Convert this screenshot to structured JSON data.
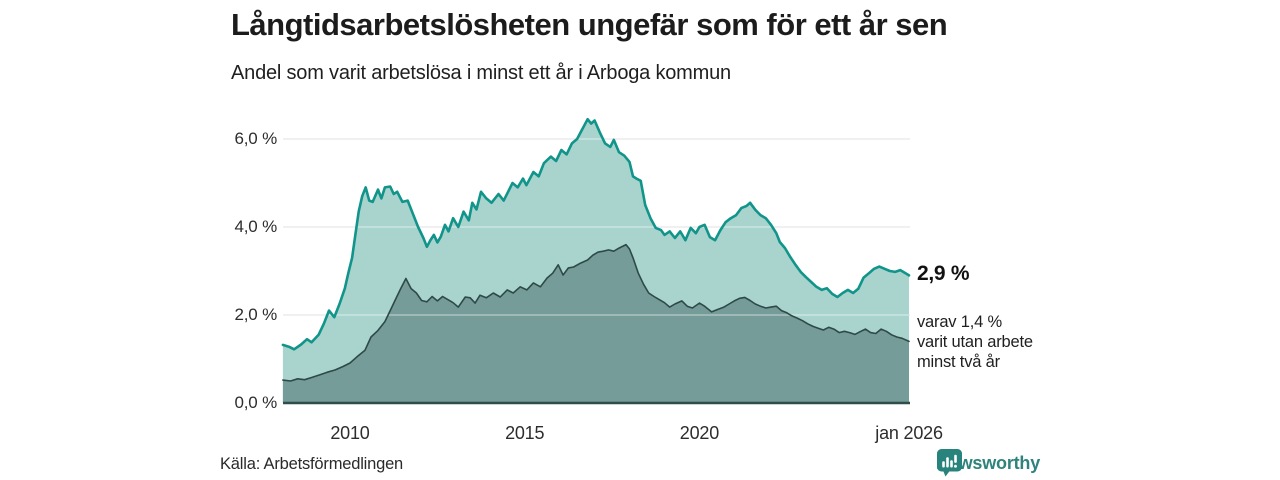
{
  "header": {
    "title": "Långtidsarbetslösheten ungefär som för ett år sen",
    "subtitle": "Andel som varit arbetslösa i minst ett år i Arboga kommun"
  },
  "annotations": {
    "total_label": "2,9 %",
    "subset_label": "varav 1,4 %\nvarit utan arbete\nminst två år"
  },
  "footer": {
    "source": "Källa: Arbetsförmedlingen",
    "brand": "Newsworthy"
  },
  "chart_data": {
    "type": "area",
    "title": "Långtidsarbetslösheten ungefär som för ett år sen",
    "subtitle": "Andel som varit arbetslösa i minst ett år i Arboga kommun",
    "unit": "%",
    "x_range": [
      2008.08,
      2026.0
    ],
    "ylim": [
      0,
      6.6
    ],
    "grid": "horizontal",
    "legend": "none",
    "y_ticks": [
      {
        "label": "6,0 %",
        "value": 6
      },
      {
        "label": "4,0 %",
        "value": 4
      },
      {
        "label": "2,0 %",
        "value": 2
      },
      {
        "label": "0,0 %",
        "value": 0
      }
    ],
    "x_ticks": [
      {
        "label": "2010",
        "year": 2010
      },
      {
        "label": "2015",
        "year": 2015
      },
      {
        "label": "2020",
        "year": 2020
      },
      {
        "label": "jan 2026",
        "year": 2026
      }
    ],
    "colors": {
      "grid": "#e2e2e6",
      "grid_over_area": "rgba(255,255,255,0.4)",
      "baseline": "#2f4d49"
    },
    "series": [
      {
        "name": "Arbetslösa minst ett år",
        "last_value": 2.9,
        "last_value_label": "2,9 %",
        "fill": "#a9d4ce",
        "stroke": "#11948a",
        "stroke_width": 2.6,
        "points": [
          [
            2008.08,
            1.32
          ],
          [
            2008.25,
            1.28
          ],
          [
            2008.4,
            1.22
          ],
          [
            2008.6,
            1.33
          ],
          [
            2008.77,
            1.45
          ],
          [
            2008.9,
            1.38
          ],
          [
            2009.1,
            1.55
          ],
          [
            2009.25,
            1.8
          ],
          [
            2009.4,
            2.1
          ],
          [
            2009.55,
            1.95
          ],
          [
            2009.7,
            2.25
          ],
          [
            2009.85,
            2.6
          ],
          [
            2009.95,
            2.95
          ],
          [
            2010.06,
            3.3
          ],
          [
            2010.15,
            3.8
          ],
          [
            2010.25,
            4.35
          ],
          [
            2010.35,
            4.7
          ],
          [
            2010.45,
            4.9
          ],
          [
            2010.55,
            4.6
          ],
          [
            2010.65,
            4.57
          ],
          [
            2010.8,
            4.85
          ],
          [
            2010.9,
            4.65
          ],
          [
            2011.0,
            4.9
          ],
          [
            2011.15,
            4.92
          ],
          [
            2011.25,
            4.75
          ],
          [
            2011.35,
            4.8
          ],
          [
            2011.5,
            4.57
          ],
          [
            2011.65,
            4.6
          ],
          [
            2011.8,
            4.3
          ],
          [
            2011.95,
            4.0
          ],
          [
            2012.1,
            3.75
          ],
          [
            2012.2,
            3.55
          ],
          [
            2012.3,
            3.7
          ],
          [
            2012.4,
            3.82
          ],
          [
            2012.5,
            3.65
          ],
          [
            2012.6,
            3.78
          ],
          [
            2012.72,
            4.05
          ],
          [
            2012.82,
            3.9
          ],
          [
            2012.95,
            4.2
          ],
          [
            2013.1,
            4.0
          ],
          [
            2013.25,
            4.35
          ],
          [
            2013.4,
            4.15
          ],
          [
            2013.5,
            4.55
          ],
          [
            2013.62,
            4.4
          ],
          [
            2013.75,
            4.8
          ],
          [
            2013.9,
            4.65
          ],
          [
            2014.05,
            4.55
          ],
          [
            2014.25,
            4.75
          ],
          [
            2014.4,
            4.6
          ],
          [
            2014.65,
            5.0
          ],
          [
            2014.8,
            4.9
          ],
          [
            2014.95,
            5.1
          ],
          [
            2015.05,
            4.95
          ],
          [
            2015.25,
            5.25
          ],
          [
            2015.4,
            5.15
          ],
          [
            2015.55,
            5.45
          ],
          [
            2015.75,
            5.6
          ],
          [
            2015.9,
            5.5
          ],
          [
            2016.05,
            5.75
          ],
          [
            2016.2,
            5.65
          ],
          [
            2016.35,
            5.9
          ],
          [
            2016.5,
            6.0
          ],
          [
            2016.6,
            6.15
          ],
          [
            2016.7,
            6.3
          ],
          [
            2016.8,
            6.45
          ],
          [
            2016.9,
            6.35
          ],
          [
            2017.0,
            6.42
          ],
          [
            2017.15,
            6.15
          ],
          [
            2017.3,
            5.9
          ],
          [
            2017.45,
            5.82
          ],
          [
            2017.55,
            5.98
          ],
          [
            2017.7,
            5.7
          ],
          [
            2017.85,
            5.62
          ],
          [
            2018.0,
            5.48
          ],
          [
            2018.1,
            5.15
          ],
          [
            2018.2,
            5.1
          ],
          [
            2018.32,
            5.05
          ],
          [
            2018.45,
            4.5
          ],
          [
            2018.6,
            4.2
          ],
          [
            2018.75,
            3.98
          ],
          [
            2018.9,
            3.93
          ],
          [
            2019.0,
            3.82
          ],
          [
            2019.15,
            3.9
          ],
          [
            2019.3,
            3.75
          ],
          [
            2019.45,
            3.9
          ],
          [
            2019.6,
            3.7
          ],
          [
            2019.75,
            3.98
          ],
          [
            2019.9,
            3.86
          ],
          [
            2020.0,
            4.0
          ],
          [
            2020.15,
            4.05
          ],
          [
            2020.3,
            3.77
          ],
          [
            2020.45,
            3.7
          ],
          [
            2020.6,
            3.93
          ],
          [
            2020.75,
            4.11
          ],
          [
            2020.9,
            4.2
          ],
          [
            2021.05,
            4.27
          ],
          [
            2021.2,
            4.43
          ],
          [
            2021.35,
            4.48
          ],
          [
            2021.45,
            4.55
          ],
          [
            2021.6,
            4.39
          ],
          [
            2021.75,
            4.27
          ],
          [
            2021.9,
            4.2
          ],
          [
            2022.05,
            4.05
          ],
          [
            2022.2,
            3.86
          ],
          [
            2022.3,
            3.66
          ],
          [
            2022.45,
            3.52
          ],
          [
            2022.6,
            3.32
          ],
          [
            2022.75,
            3.14
          ],
          [
            2022.9,
            2.98
          ],
          [
            2023.05,
            2.86
          ],
          [
            2023.2,
            2.75
          ],
          [
            2023.35,
            2.64
          ],
          [
            2023.5,
            2.57
          ],
          [
            2023.65,
            2.61
          ],
          [
            2023.8,
            2.48
          ],
          [
            2023.95,
            2.41
          ],
          [
            2024.1,
            2.5
          ],
          [
            2024.25,
            2.57
          ],
          [
            2024.4,
            2.5
          ],
          [
            2024.55,
            2.6
          ],
          [
            2024.7,
            2.85
          ],
          [
            2024.85,
            2.95
          ],
          [
            2025.0,
            3.05
          ],
          [
            2025.15,
            3.1
          ],
          [
            2025.3,
            3.05
          ],
          [
            2025.45,
            3.0
          ],
          [
            2025.6,
            2.98
          ],
          [
            2025.75,
            3.02
          ],
          [
            2025.9,
            2.95
          ],
          [
            2026.0,
            2.9
          ]
        ]
      },
      {
        "name": "varav utan arbete minst två år",
        "last_value": 1.4,
        "last_value_label": "1,4 %",
        "fill": "#759c98",
        "stroke": "#2e4a48",
        "stroke_width": 1.6,
        "points": [
          [
            2008.08,
            0.52
          ],
          [
            2008.3,
            0.5
          ],
          [
            2008.5,
            0.55
          ],
          [
            2008.7,
            0.53
          ],
          [
            2008.9,
            0.58
          ],
          [
            2009.14,
            0.64
          ],
          [
            2009.35,
            0.7
          ],
          [
            2009.57,
            0.75
          ],
          [
            2009.8,
            0.83
          ],
          [
            2010.0,
            0.91
          ],
          [
            2010.2,
            1.05
          ],
          [
            2010.43,
            1.2
          ],
          [
            2010.6,
            1.5
          ],
          [
            2010.8,
            1.65
          ],
          [
            2011.0,
            1.85
          ],
          [
            2011.15,
            2.1
          ],
          [
            2011.3,
            2.35
          ],
          [
            2011.45,
            2.6
          ],
          [
            2011.6,
            2.83
          ],
          [
            2011.75,
            2.6
          ],
          [
            2011.9,
            2.5
          ],
          [
            2012.05,
            2.33
          ],
          [
            2012.2,
            2.3
          ],
          [
            2012.35,
            2.42
          ],
          [
            2012.5,
            2.32
          ],
          [
            2012.65,
            2.42
          ],
          [
            2012.8,
            2.35
          ],
          [
            2012.95,
            2.28
          ],
          [
            2013.1,
            2.18
          ],
          [
            2013.3,
            2.41
          ],
          [
            2013.44,
            2.39
          ],
          [
            2013.58,
            2.27
          ],
          [
            2013.72,
            2.45
          ],
          [
            2013.9,
            2.39
          ],
          [
            2014.1,
            2.5
          ],
          [
            2014.3,
            2.41
          ],
          [
            2014.5,
            2.57
          ],
          [
            2014.67,
            2.5
          ],
          [
            2014.87,
            2.64
          ],
          [
            2015.06,
            2.57
          ],
          [
            2015.25,
            2.73
          ],
          [
            2015.45,
            2.64
          ],
          [
            2015.64,
            2.84
          ],
          [
            2015.8,
            2.95
          ],
          [
            2015.96,
            3.14
          ],
          [
            2016.1,
            2.91
          ],
          [
            2016.25,
            3.07
          ],
          [
            2016.4,
            3.09
          ],
          [
            2016.6,
            3.18
          ],
          [
            2016.8,
            3.25
          ],
          [
            2016.95,
            3.36
          ],
          [
            2017.1,
            3.43
          ],
          [
            2017.25,
            3.45
          ],
          [
            2017.4,
            3.48
          ],
          [
            2017.55,
            3.45
          ],
          [
            2017.7,
            3.52
          ],
          [
            2017.9,
            3.6
          ],
          [
            2018.0,
            3.5
          ],
          [
            2018.1,
            3.3
          ],
          [
            2018.25,
            2.95
          ],
          [
            2018.4,
            2.7
          ],
          [
            2018.55,
            2.5
          ],
          [
            2018.7,
            2.42
          ],
          [
            2018.85,
            2.35
          ],
          [
            2019.0,
            2.28
          ],
          [
            2019.15,
            2.18
          ],
          [
            2019.3,
            2.25
          ],
          [
            2019.5,
            2.32
          ],
          [
            2019.65,
            2.2
          ],
          [
            2019.8,
            2.16
          ],
          [
            2020.0,
            2.27
          ],
          [
            2020.15,
            2.2
          ],
          [
            2020.35,
            2.07
          ],
          [
            2020.5,
            2.12
          ],
          [
            2020.7,
            2.18
          ],
          [
            2020.85,
            2.25
          ],
          [
            2021.0,
            2.32
          ],
          [
            2021.15,
            2.38
          ],
          [
            2021.3,
            2.4
          ],
          [
            2021.45,
            2.33
          ],
          [
            2021.6,
            2.25
          ],
          [
            2021.75,
            2.2
          ],
          [
            2021.9,
            2.16
          ],
          [
            2022.05,
            2.18
          ],
          [
            2022.2,
            2.2
          ],
          [
            2022.35,
            2.1
          ],
          [
            2022.5,
            2.05
          ],
          [
            2022.65,
            1.98
          ],
          [
            2022.8,
            1.93
          ],
          [
            2022.95,
            1.87
          ],
          [
            2023.1,
            1.8
          ],
          [
            2023.25,
            1.74
          ],
          [
            2023.4,
            1.7
          ],
          [
            2023.55,
            1.66
          ],
          [
            2023.7,
            1.72
          ],
          [
            2023.85,
            1.68
          ],
          [
            2024.0,
            1.6
          ],
          [
            2024.15,
            1.63
          ],
          [
            2024.3,
            1.6
          ],
          [
            2024.45,
            1.56
          ],
          [
            2024.6,
            1.62
          ],
          [
            2024.75,
            1.68
          ],
          [
            2024.9,
            1.6
          ],
          [
            2025.05,
            1.58
          ],
          [
            2025.2,
            1.68
          ],
          [
            2025.35,
            1.63
          ],
          [
            2025.5,
            1.55
          ],
          [
            2025.65,
            1.5
          ],
          [
            2025.8,
            1.47
          ],
          [
            2026.0,
            1.4
          ]
        ]
      }
    ]
  }
}
